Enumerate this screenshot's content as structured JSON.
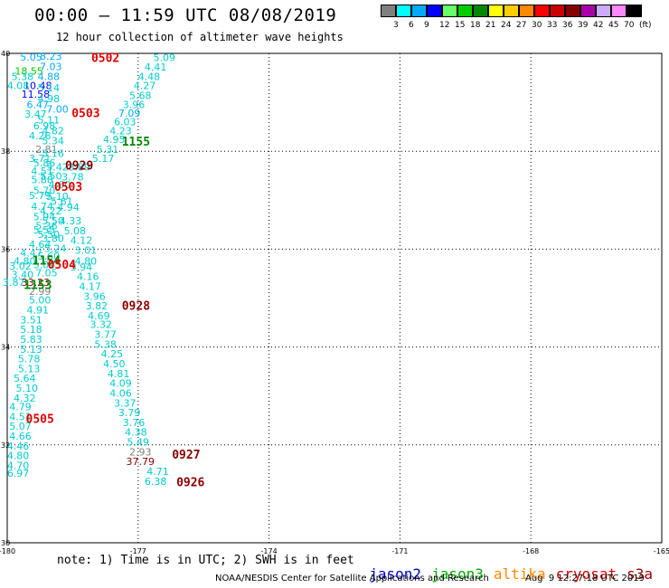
{
  "header": {
    "title": "00:00 – 11:59 UTC 08/08/2019",
    "subtitle": "12 hour collection of altimeter wave heights"
  },
  "colorbar": {
    "colors": [
      "#808080",
      "#00ffff",
      "#00aaff",
      "#0000ff",
      "#66ff66",
      "#00cc00",
      "#008800",
      "#ffff00",
      "#ffcc00",
      "#ff8800",
      "#ff0000",
      "#cc0000",
      "#880000",
      "#aa00aa",
      "#ccaaff",
      "#ff88ff",
      "#000000"
    ],
    "labels": [
      "3",
      "6",
      "9",
      "12",
      "15",
      "18",
      "21",
      "24",
      "27",
      "30",
      "33",
      "36",
      "39",
      "42",
      "45",
      "70",
      "(ft)"
    ]
  },
  "map": {
    "lon_ticks": [
      "-180",
      "-177",
      "-174",
      "-171",
      "-168",
      "-165"
    ],
    "lat_ticks": [
      "40",
      "38",
      "36",
      "34",
      "32",
      "30"
    ]
  },
  "chart_data": {
    "type": "scatter",
    "xlim": [
      -180,
      -165
    ],
    "ylim": [
      30,
      40
    ],
    "grid": true,
    "wave_heights": [
      {
        "x": -179.45,
        "y": 39.93,
        "text": "5.05",
        "color": "#00aaff"
      },
      {
        "x": -179.0,
        "y": 39.94,
        "text": "8.23",
        "color": "#00aaff"
      },
      {
        "x": -176.4,
        "y": 39.92,
        "text": "5.09",
        "color": "#00cccc"
      },
      {
        "x": -179.0,
        "y": 39.73,
        "text": "7.03",
        "color": "#00aaff"
      },
      {
        "x": -176.6,
        "y": 39.72,
        "text": "4.41",
        "color": "#00cccc"
      },
      {
        "x": -179.5,
        "y": 39.64,
        "text": "18.55",
        "color": "#00cc00"
      },
      {
        "x": -179.65,
        "y": 39.53,
        "text": "5.38",
        "color": "#00cccc"
      },
      {
        "x": -179.05,
        "y": 39.53,
        "text": "4.88",
        "color": "#00aaff"
      },
      {
        "x": -176.75,
        "y": 39.53,
        "text": "4.48",
        "color": "#00cccc"
      },
      {
        "x": -179.3,
        "y": 39.34,
        "text": "10.48",
        "color": "#0000ff"
      },
      {
        "x": -179.75,
        "y": 39.34,
        "text": "4.08",
        "color": "#00cccc"
      },
      {
        "x": -176.85,
        "y": 39.34,
        "text": "4.27",
        "color": "#00cccc"
      },
      {
        "x": -179.05,
        "y": 39.3,
        "text": "5.14",
        "color": "#00cccc"
      },
      {
        "x": -179.35,
        "y": 39.17,
        "text": "11.58",
        "color": "#0000ff"
      },
      {
        "x": -176.95,
        "y": 39.14,
        "text": "5.68",
        "color": "#00cccc"
      },
      {
        "x": -179.05,
        "y": 39.08,
        "text": "4.98",
        "color": "#00cccc"
      },
      {
        "x": -179.3,
        "y": 38.96,
        "text": "6.47",
        "color": "#00aaff"
      },
      {
        "x": -177.1,
        "y": 38.96,
        "text": "3.96",
        "color": "#00cccc"
      },
      {
        "x": -178.85,
        "y": 38.86,
        "text": "7.00",
        "color": "#00aaff"
      },
      {
        "x": -177.2,
        "y": 38.78,
        "text": "7.09",
        "color": "#00aaff"
      },
      {
        "x": -179.35,
        "y": 38.76,
        "text": "3.47",
        "color": "#00cccc"
      },
      {
        "x": -179.05,
        "y": 38.64,
        "text": "5.11",
        "color": "#00cccc"
      },
      {
        "x": -177.3,
        "y": 38.6,
        "text": "6.03",
        "color": "#00cccc"
      },
      {
        "x": -179.15,
        "y": 38.52,
        "text": "6.98",
        "color": "#00cccc"
      },
      {
        "x": -178.95,
        "y": 38.42,
        "text": "4.82",
        "color": "#00cccc"
      },
      {
        "x": -177.4,
        "y": 38.42,
        "text": "4.23",
        "color": "#00cccc"
      },
      {
        "x": -179.25,
        "y": 38.32,
        "text": "4.26",
        "color": "#00cccc"
      },
      {
        "x": -177.55,
        "y": 38.24,
        "text": "4.95",
        "color": "#00cccc"
      },
      {
        "x": -178.95,
        "y": 38.22,
        "text": "5.34",
        "color": "#00cccc"
      },
      {
        "x": -179.1,
        "y": 38.04,
        "text": "2.81",
        "color": "#808080"
      },
      {
        "x": -177.7,
        "y": 38.04,
        "text": "5.31",
        "color": "#00cccc"
      },
      {
        "x": -178.95,
        "y": 37.96,
        "text": "5.16",
        "color": "#00cccc"
      },
      {
        "x": -179.25,
        "y": 37.86,
        "text": "3.71",
        "color": "#00cccc"
      },
      {
        "x": -177.8,
        "y": 37.86,
        "text": "5.17",
        "color": "#00cccc"
      },
      {
        "x": -179.15,
        "y": 37.76,
        "text": "5.86",
        "color": "#00cccc"
      },
      {
        "x": -178.85,
        "y": 37.68,
        "text": "5.42",
        "color": "#00cccc"
      },
      {
        "x": -178.35,
        "y": 37.68,
        "text": "3.89",
        "color": "#00cccc"
      },
      {
        "x": -179.2,
        "y": 37.6,
        "text": "4.51",
        "color": "#00cccc"
      },
      {
        "x": -179.0,
        "y": 37.5,
        "text": "5.50",
        "color": "#00cccc"
      },
      {
        "x": -178.5,
        "y": 37.48,
        "text": "3.78",
        "color": "#00cccc"
      },
      {
        "x": -179.2,
        "y": 37.42,
        "text": "5.88",
        "color": "#00cccc"
      },
      {
        "x": -178.8,
        "y": 37.32,
        "text": "4.60",
        "color": "#00cccc"
      },
      {
        "x": -179.15,
        "y": 37.2,
        "text": "5.70",
        "color": "#00cccc"
      },
      {
        "x": -179.25,
        "y": 37.1,
        "text": "5.79",
        "color": "#00cccc"
      },
      {
        "x": -178.85,
        "y": 37.08,
        "text": "5.10",
        "color": "#00cccc"
      },
      {
        "x": -178.75,
        "y": 36.98,
        "text": "5.61",
        "color": "#00cccc"
      },
      {
        "x": -179.2,
        "y": 36.88,
        "text": "4.74",
        "color": "#00cccc"
      },
      {
        "x": -178.6,
        "y": 36.86,
        "text": "4.94",
        "color": "#00cccc"
      },
      {
        "x": -179.0,
        "y": 36.78,
        "text": "4.22",
        "color": "#00cccc"
      },
      {
        "x": -179.15,
        "y": 36.66,
        "text": "5.94",
        "color": "#00cccc"
      },
      {
        "x": -178.95,
        "y": 36.58,
        "text": "5.50",
        "color": "#00cccc"
      },
      {
        "x": -178.55,
        "y": 36.58,
        "text": "4.33",
        "color": "#00cccc"
      },
      {
        "x": -179.1,
        "y": 36.48,
        "text": "5.36",
        "color": "#00cccc"
      },
      {
        "x": -179.15,
        "y": 36.4,
        "text": "5.55",
        "color": "#00cccc"
      },
      {
        "x": -178.45,
        "y": 36.38,
        "text": "5.08",
        "color": "#00cccc"
      },
      {
        "x": -179.05,
        "y": 36.3,
        "text": "5.50",
        "color": "#00cccc"
      },
      {
        "x": -178.95,
        "y": 36.22,
        "text": "3.80",
        "color": "#00cccc"
      },
      {
        "x": -178.3,
        "y": 36.18,
        "text": "4.12",
        "color": "#00cccc"
      },
      {
        "x": -179.25,
        "y": 36.1,
        "text": "4.64",
        "color": "#00cccc"
      },
      {
        "x": -178.9,
        "y": 36.02,
        "text": "5.24",
        "color": "#00cccc"
      },
      {
        "x": -178.2,
        "y": 35.98,
        "text": "3.01",
        "color": "#00cccc"
      },
      {
        "x": -179.45,
        "y": 35.92,
        "text": "4.47",
        "color": "#00cccc"
      },
      {
        "x": -179.05,
        "y": 35.86,
        "text": "5.60",
        "color": "#00cccc"
      },
      {
        "x": -179.6,
        "y": 35.76,
        "text": "4.80",
        "color": "#00cccc"
      },
      {
        "x": -178.2,
        "y": 35.76,
        "text": "4.80",
        "color": "#00cccc"
      },
      {
        "x": -179.15,
        "y": 35.68,
        "text": "5.04",
        "color": "#00cccc"
      },
      {
        "x": -178.3,
        "y": 35.64,
        "text": "3.94",
        "color": "#00cccc"
      },
      {
        "x": -179.7,
        "y": 35.66,
        "text": "3.02",
        "color": "#00cccc"
      },
      {
        "x": -179.1,
        "y": 35.52,
        "text": "7.05",
        "color": "#00cccc"
      },
      {
        "x": -178.15,
        "y": 35.44,
        "text": "4.16",
        "color": "#00cccc"
      },
      {
        "x": -179.65,
        "y": 35.48,
        "text": "3.40",
        "color": "#00cccc"
      },
      {
        "x": -179.85,
        "y": 35.32,
        "text": "3.87",
        "color": "#00cccc"
      },
      {
        "x": -179.35,
        "y": 35.32,
        "text": "33.23",
        "color": "#880000"
      },
      {
        "x": -178.1,
        "y": 35.24,
        "text": "4.17",
        "color": "#00cccc"
      },
      {
        "x": -179.25,
        "y": 35.14,
        "text": "2.99",
        "color": "#808080"
      },
      {
        "x": -178.0,
        "y": 35.04,
        "text": "3.96",
        "color": "#00cccc"
      },
      {
        "x": -179.25,
        "y": 34.96,
        "text": "5.00",
        "color": "#00cccc"
      },
      {
        "x": -177.95,
        "y": 34.84,
        "text": "3.82",
        "color": "#00cccc"
      },
      {
        "x": -179.3,
        "y": 34.76,
        "text": "4.91",
        "color": "#00cccc"
      },
      {
        "x": -177.9,
        "y": 34.64,
        "text": "4.69",
        "color": "#00cccc"
      },
      {
        "x": -179.45,
        "y": 34.56,
        "text": "3.51",
        "color": "#00cccc"
      },
      {
        "x": -177.85,
        "y": 34.46,
        "text": "3.32",
        "color": "#00cccc"
      },
      {
        "x": -179.45,
        "y": 34.36,
        "text": "5.18",
        "color": "#00cccc"
      },
      {
        "x": -177.75,
        "y": 34.26,
        "text": "3.77",
        "color": "#00cccc"
      },
      {
        "x": -179.45,
        "y": 34.16,
        "text": "5.83",
        "color": "#00cccc"
      },
      {
        "x": -177.75,
        "y": 34.06,
        "text": "5.38",
        "color": "#00cccc"
      },
      {
        "x": -179.45,
        "y": 33.96,
        "text": "5.13",
        "color": "#00cccc"
      },
      {
        "x": -177.6,
        "y": 33.86,
        "text": "4.25",
        "color": "#00cccc"
      },
      {
        "x": -179.5,
        "y": 33.76,
        "text": "5.78",
        "color": "#00cccc"
      },
      {
        "x": -177.55,
        "y": 33.66,
        "text": "4.50",
        "color": "#00cccc"
      },
      {
        "x": -179.5,
        "y": 33.56,
        "text": "5.13",
        "color": "#00cccc"
      },
      {
        "x": -177.45,
        "y": 33.46,
        "text": "4.81",
        "color": "#00cccc"
      },
      {
        "x": -179.6,
        "y": 33.36,
        "text": "5.64",
        "color": "#00cccc"
      },
      {
        "x": -177.4,
        "y": 33.26,
        "text": "4.09",
        "color": "#00cccc"
      },
      {
        "x": -179.55,
        "y": 33.16,
        "text": "5.10",
        "color": "#00cccc"
      },
      {
        "x": -177.4,
        "y": 33.06,
        "text": "4.06",
        "color": "#00cccc"
      },
      {
        "x": -179.6,
        "y": 32.96,
        "text": "4.32",
        "color": "#00cccc"
      },
      {
        "x": -177.3,
        "y": 32.86,
        "text": "3.37",
        "color": "#00cccc"
      },
      {
        "x": -179.7,
        "y": 32.78,
        "text": "4.79",
        "color": "#00cccc"
      },
      {
        "x": -177.2,
        "y": 32.66,
        "text": "3.79",
        "color": "#00cccc"
      },
      {
        "x": -179.7,
        "y": 32.58,
        "text": "4.51",
        "color": "#00cccc"
      },
      {
        "x": -177.1,
        "y": 32.46,
        "text": "3.76",
        "color": "#00cccc"
      },
      {
        "x": -179.7,
        "y": 32.38,
        "text": "5.07",
        "color": "#00cccc"
      },
      {
        "x": -177.05,
        "y": 32.26,
        "text": "4.38",
        "color": "#00cccc"
      },
      {
        "x": -179.7,
        "y": 32.18,
        "text": "4.66",
        "color": "#00cccc"
      },
      {
        "x": -177.0,
        "y": 32.06,
        "text": "5.49",
        "color": "#00cccc"
      },
      {
        "x": -179.75,
        "y": 31.98,
        "text": "4.46",
        "color": "#00cccc"
      },
      {
        "x": -176.95,
        "y": 31.86,
        "text": "2.93",
        "color": "#808080"
      },
      {
        "x": -179.75,
        "y": 31.78,
        "text": "4.80",
        "color": "#00cccc"
      },
      {
        "x": -176.95,
        "y": 31.66,
        "text": "37.79",
        "color": "#880000"
      },
      {
        "x": -179.75,
        "y": 31.58,
        "text": "4.70",
        "color": "#00cccc"
      },
      {
        "x": -176.55,
        "y": 31.46,
        "text": "4.71",
        "color": "#00cccc"
      },
      {
        "x": -179.75,
        "y": 31.42,
        "text": "6.97",
        "color": "#00cccc"
      },
      {
        "x": -176.6,
        "y": 31.26,
        "text": "6.38",
        "color": "#00cccc"
      }
    ],
    "pass_times": [
      {
        "x": -177.75,
        "y": 39.92,
        "text": "0502",
        "color": "#e00000"
      },
      {
        "x": -178.2,
        "y": 38.79,
        "text": "0503",
        "color": "#e00000"
      },
      {
        "x": -177.05,
        "y": 38.21,
        "text": "1155",
        "color": "#008800"
      },
      {
        "x": -178.35,
        "y": 37.72,
        "text": "0929",
        "color": "#880000"
      },
      {
        "x": -178.6,
        "y": 37.28,
        "text": "0503",
        "color": "#e00000"
      },
      {
        "x": -179.1,
        "y": 35.78,
        "text": "1154",
        "color": "#008800"
      },
      {
        "x": -178.75,
        "y": 35.69,
        "text": "0504",
        "color": "#e00000"
      },
      {
        "x": -179.3,
        "y": 35.28,
        "text": "1153",
        "color": "#008800"
      },
      {
        "x": -177.05,
        "y": 34.85,
        "text": "0928",
        "color": "#880000"
      },
      {
        "x": -179.25,
        "y": 32.54,
        "text": "0505",
        "color": "#e00000"
      },
      {
        "x": -175.9,
        "y": 31.81,
        "text": "0927",
        "color": "#880000"
      },
      {
        "x": -175.8,
        "y": 31.25,
        "text": "0926",
        "color": "#880000"
      }
    ]
  },
  "note": "note: 1) Time is in UTC; 2) SWH is in feet",
  "legend": [
    {
      "label": "jason2",
      "color": "#0000cc"
    },
    {
      "label": "jason3",
      "color": "#00aa00"
    },
    {
      "label": "altika",
      "color": "#ff8800"
    },
    {
      "label": "cryosat",
      "color": "#dd0000"
    },
    {
      "label": "s3a",
      "color": "#990000"
    }
  ],
  "footer": {
    "credit": "NOAA/NESDIS Center for Satellite Applications and Research",
    "timestamp": "Aug  9 12:27:18 UTC 2019"
  }
}
